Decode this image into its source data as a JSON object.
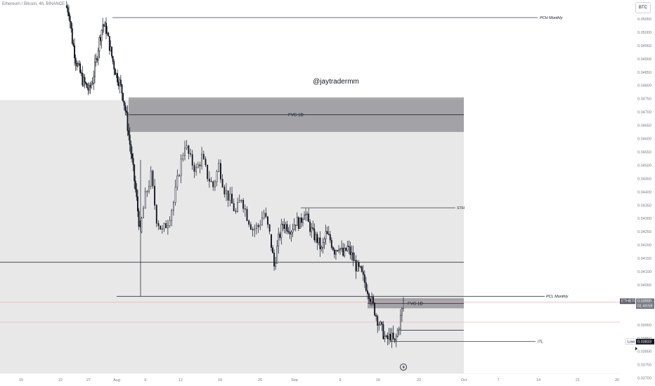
{
  "header": {
    "title": "Ethereum / Bitcoin, 4h, BINANCE",
    "currency_button": "BTC"
  },
  "watermark": "@jaytradermm",
  "footer_icon": "lightning-icon",
  "colors": {
    "candle": "#131722",
    "zone_fill": "#e8e8e8",
    "fvg_fill": "#8c8c91",
    "pink_line": "#f4b7be",
    "axis_text": "#787b86",
    "price_tag_bg": "#5d606b"
  },
  "chart_data": {
    "type": "candlestick",
    "symbol": "ETHBTC",
    "interval": "4h",
    "x_axis": {
      "tick_labels": [
        "15",
        "22",
        "27",
        "Aug",
        "6",
        "12",
        "19",
        "26",
        "Sep",
        "9",
        "16",
        "23",
        "Oct",
        "7",
        "14",
        "21",
        "26"
      ]
    },
    "y_axis": {
      "side": "right",
      "range": [
        0.03685,
        0.05085
      ],
      "tick_labels": [
        "0.05050",
        "0.05000",
        "0.04950",
        "0.04900",
        "0.04850",
        "0.04800",
        "0.04750",
        "0.04700",
        "0.04650",
        "0.04600",
        "0.04550",
        "0.04500",
        "0.04450",
        "0.04400",
        "0.04350",
        "0.04300",
        "0.04250",
        "0.04200",
        "0.04150",
        "0.04100",
        "0.04050",
        "0.03900",
        "0.03850",
        "0.03800",
        "0.03750",
        "0.03700"
      ],
      "tick_values": [
        0.0505,
        0.05,
        0.0495,
        0.049,
        0.0485,
        0.048,
        0.0475,
        0.047,
        0.0465,
        0.046,
        0.0455,
        0.045,
        0.0445,
        0.044,
        0.0435,
        0.043,
        0.0425,
        0.042,
        0.0415,
        0.041,
        0.0405,
        0.039,
        0.0385,
        0.038,
        0.0375,
        0.037
      ]
    },
    "price_path": [
      [
        0.051,
        0.0508,
        0.0497,
        0.049,
        0.0486,
        0.0482,
        0.048,
        0.0478,
        0.0482,
        0.0489,
        0.0497,
        0.0503,
        0.0501,
        0.0495,
        0.0489,
        0.0484,
        0.0481,
        0.0476,
        0.0468,
        0.0458,
        0.0448,
        0.0437,
        0.0425
      ],
      [
        0.0425,
        0.0438,
        0.0446,
        0.043,
        0.0425,
        0.0429,
        0.0436,
        0.0448,
        0.0458,
        0.0452,
        0.0448,
        0.0453,
        0.0446,
        0.0442,
        0.045,
        0.0441,
        0.0437,
        0.0432,
        0.0438,
        0.0431,
        0.0426,
        0.0427,
        0.0432,
        0.0424
      ],
      [
        0.0424,
        0.0412,
        0.0422,
        0.0428,
        0.0427,
        0.0426,
        0.0429,
        0.0428,
        0.0433,
        0.0428,
        0.0424,
        0.0422,
        0.0418,
        0.0424,
        0.0422,
        0.0418,
        0.042,
        0.0416,
        0.0419,
        0.0416,
        0.0412,
        0.041,
        0.0406,
        0.0402,
        0.0397,
        0.0392,
        0.0388,
        0.0384,
        0.0386,
        0.0383,
        0.039,
        0.0398
      ]
    ],
    "zones": [
      {
        "name": "gray-background-zone",
        "from_price": 0.0369,
        "to_price": 0.04745,
        "from_x": "15",
        "to_x": "Oct"
      },
      {
        "name": "fvg-1d-top",
        "label": "FVG 1D",
        "from_price": 0.04625,
        "to_price": 0.04755,
        "from_x": "Aug",
        "to_x": "Oct"
      },
      {
        "name": "fvg-1d-bottom",
        "label": "FVG 1D",
        "from_price": 0.03962,
        "to_price": 0.04,
        "from_x": "Sep",
        "to_x": "Oct"
      }
    ],
    "levels": [
      {
        "name": "PCH Monthly",
        "label": "PCH Monthly",
        "price": 0.05055
      },
      {
        "name": "STH",
        "label": "STH",
        "price": 0.0434
      },
      {
        "name": "black-line",
        "price": 0.04135
      },
      {
        "name": "PCL Monthly",
        "label": "PCL Monthly",
        "price": 0.04007
      },
      {
        "name": "ITL",
        "label": "ITL",
        "price": 0.03838
      },
      {
        "name": "level-0388",
        "price": 0.0388
      }
    ],
    "pink_levels": [
      0.03985,
      0.0391
    ],
    "last_price": {
      "symbol": "ETHBTC",
      "price": "0.03990",
      "countdown": "01:49:59"
    },
    "low_marker": {
      "label": "Low",
      "price": "0.03833"
    }
  }
}
